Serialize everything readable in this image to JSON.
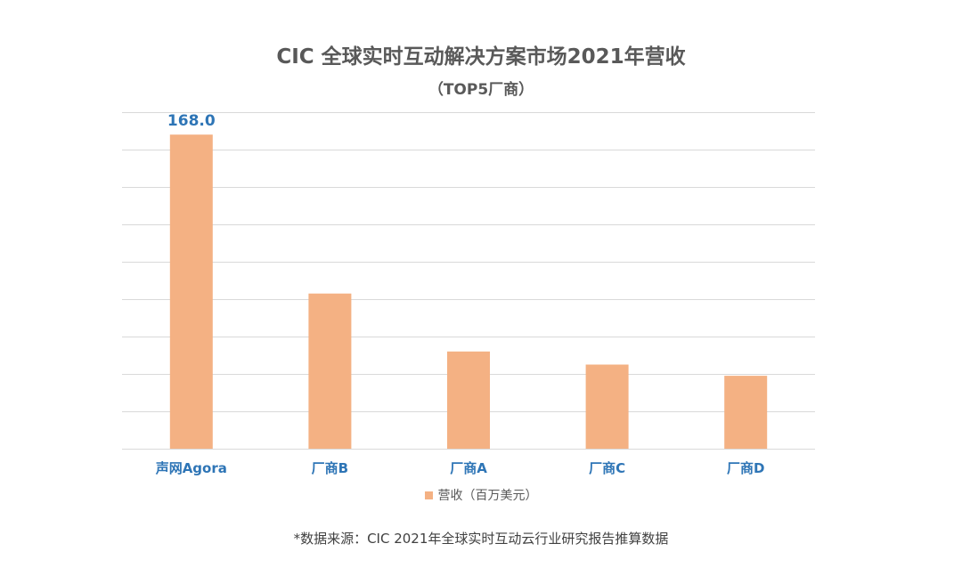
{
  "colors": {
    "bar": "#f4b183",
    "category_label": "#2e75b6",
    "data_label": "#2e75b6",
    "gridline": "#d9d9d9",
    "title": "#595959"
  },
  "chart_data": {
    "type": "bar",
    "title": "CIC 全球实时互动解决方案市场2021年营收",
    "subtitle": "（TOP5厂商）",
    "categories": [
      "声网Agora",
      "厂商B",
      "厂商A",
      "厂商C",
      "厂商D"
    ],
    "series": [
      {
        "name": "营收（百万美元）",
        "values": [
          168.0,
          83.0,
          52.0,
          45.0,
          39.0
        ],
        "data_labels": [
          "168.0",
          "",
          "",
          "",
          ""
        ]
      }
    ],
    "xlabel": "",
    "ylabel": "",
    "ylim": [
      0,
      180
    ],
    "grid_interval": 20,
    "grid": true,
    "y_tick_labels_shown": false,
    "legend_position": "bottom"
  },
  "footer": {
    "source": "*数据来源：CIC 2021年全球实时互动云行业研究报告推算数据"
  }
}
